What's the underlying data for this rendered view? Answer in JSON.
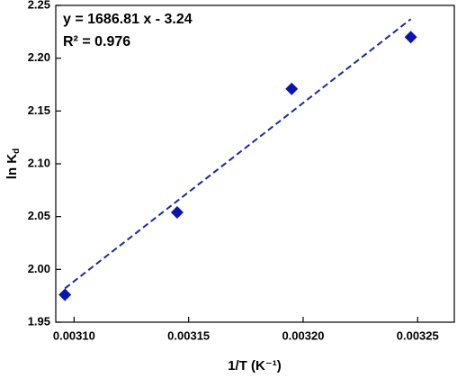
{
  "chart_data": {
    "type": "scatter",
    "x_label": "1/T (K⁻¹)",
    "y_label": {
      "main": "ln K",
      "sub": "d"
    },
    "annotations": [
      "y = 1686.81 x - 3.24",
      "R² = 0.976"
    ],
    "xlim": [
      0.003092,
      0.003266
    ],
    "ylim": [
      1.95,
      2.25
    ],
    "xticks": [
      {
        "value": 0.0031,
        "label": "0.00310"
      },
      {
        "value": 0.00315,
        "label": "0.00315"
      },
      {
        "value": 0.0032,
        "label": "0.00320"
      },
      {
        "value": 0.00325,
        "label": "0.00325"
      }
    ],
    "yticks": [
      1.95,
      {
        "value": 2.0,
        "label": "2.00"
      },
      2.05,
      {
        "value": 2.1,
        "label": "2.10"
      },
      2.15,
      {
        "value": 2.2,
        "label": "2.20"
      },
      2.25
    ],
    "series": [
      {
        "kind": "points",
        "color": "#0a14b4",
        "x": [
          0.003096,
          0.003145,
          0.003195,
          0.003247
        ],
        "values": [
          1.976,
          2.054,
          2.171,
          2.22
        ]
      },
      {
        "kind": "fit",
        "color": "#1a2a9a",
        "x": [
          0.003096,
          0.003247
        ],
        "values": [
          1.982,
          2.237
        ]
      }
    ]
  }
}
